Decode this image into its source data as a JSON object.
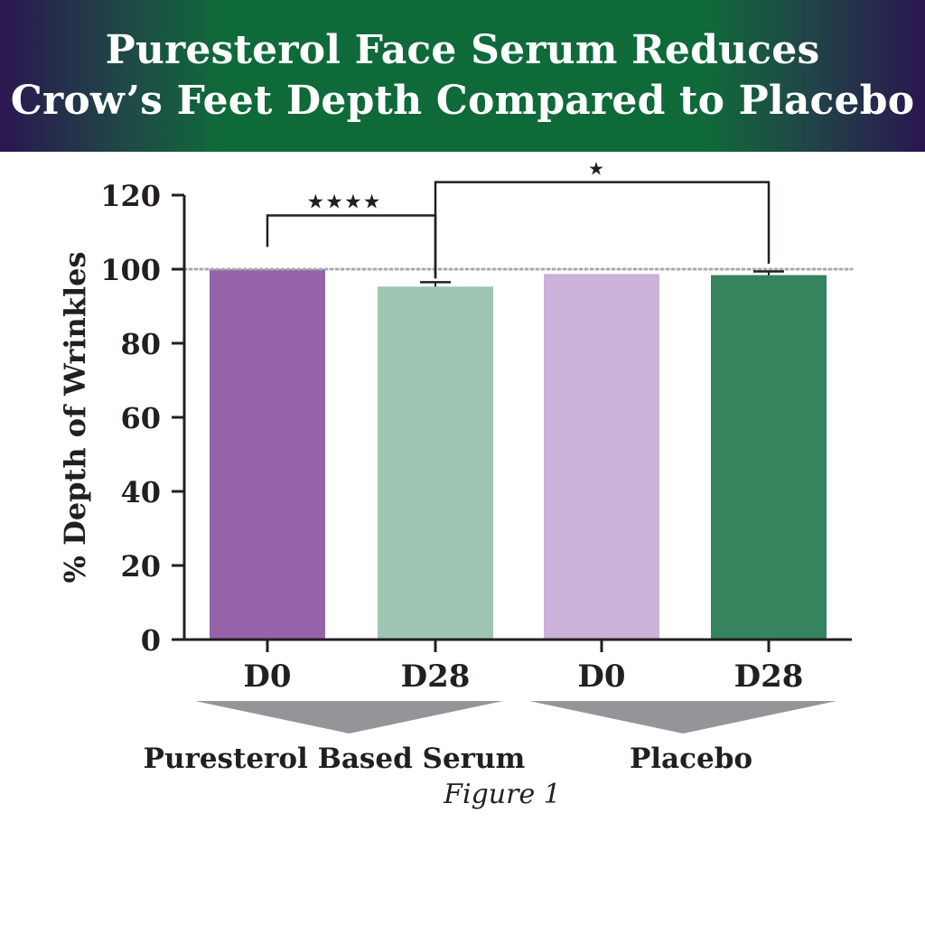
{
  "title_lines": [
    "Puresterol Face Serum Reduces",
    "Crow’s Feet Depth Compared to Placebo"
  ],
  "caption": "Figure 1",
  "colors": {
    "banner_center": "#0f6a3a",
    "banner_edge": "#2a1650",
    "serum_d0": "#9663ab",
    "serum_d28": "#9ec5b2",
    "placebo_d0": "#ccb1d8",
    "placebo_d28": "#35845e",
    "group_marker": "#939598",
    "baseline": "#a7a9ac"
  },
  "chart_data": {
    "type": "bar",
    "title": "Puresterol Face Serum Reduces Crow’s Feet Depth Compared to Placebo",
    "xlabel": "",
    "ylabel": "% Depth of Wrinkles",
    "ylim": [
      0,
      120
    ],
    "yticks": [
      "0",
      "20",
      "40",
      "60",
      "80",
      "100",
      "120"
    ],
    "categories": [
      "D0",
      "D28",
      "D0",
      "D28"
    ],
    "groups": [
      {
        "name": "Puresterol Based Serum",
        "bars": [
          0,
          1
        ]
      },
      {
        "name": "Placebo",
        "bars": [
          2,
          3
        ]
      }
    ],
    "values": [
      100,
      95.3,
      98.7,
      98.4
    ],
    "errors": [
      0,
      1.2,
      0,
      1.0
    ],
    "baseline": 100,
    "significance": [
      {
        "from": 0,
        "to": 1,
        "label": "★★★★"
      },
      {
        "from": 1,
        "to": 3,
        "label": "★"
      }
    ],
    "grid": false,
    "legend": "none"
  }
}
